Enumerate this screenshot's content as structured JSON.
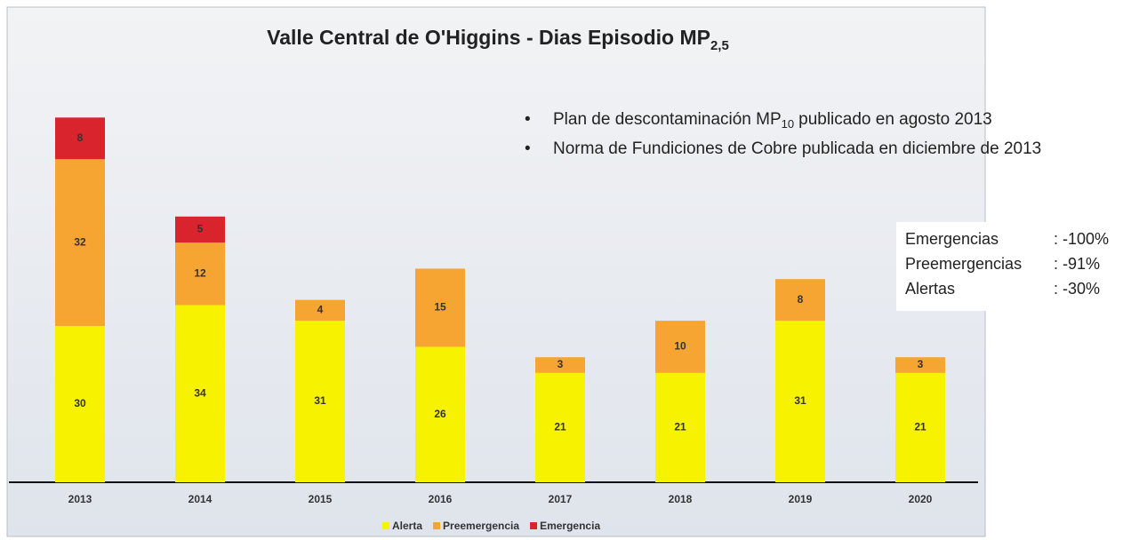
{
  "chart_data": {
    "type": "stacked_bar",
    "title": "Valle Central de O'Higgins - Dias Episodio MP",
    "title_sub": "2,5",
    "annotations": [
      {
        "before": "Plan de descontaminación MP",
        "sub": "10",
        "after": "publicado en agosto 2013"
      },
      {
        "before": "Norma de Fundiciones de Cobre publicada en diciembre de 2013"
      }
    ],
    "summary": [
      [
        "Emergencias",
        ": -100%"
      ],
      [
        "Preemergencias",
        ": -91%"
      ],
      [
        "Alertas",
        ": -30%"
      ]
    ],
    "categories": [
      "2013",
      "2014",
      "2015",
      "2016",
      "2017",
      "2018",
      "2019",
      "2020"
    ],
    "series": [
      {
        "name": "Alerta",
        "color": "#f7f200",
        "values": [
          30,
          34,
          31,
          26,
          21,
          21,
          31,
          21
        ]
      },
      {
        "name": "Preemergencia",
        "color": "#f6a532",
        "values": [
          32,
          12,
          4,
          15,
          3,
          10,
          8,
          3
        ]
      },
      {
        "name": "Emergencia",
        "color": "#d9242e",
        "values": [
          8,
          5,
          null,
          null,
          null,
          null,
          null,
          null
        ]
      }
    ],
    "ylim": [
      0,
      90
    ]
  }
}
